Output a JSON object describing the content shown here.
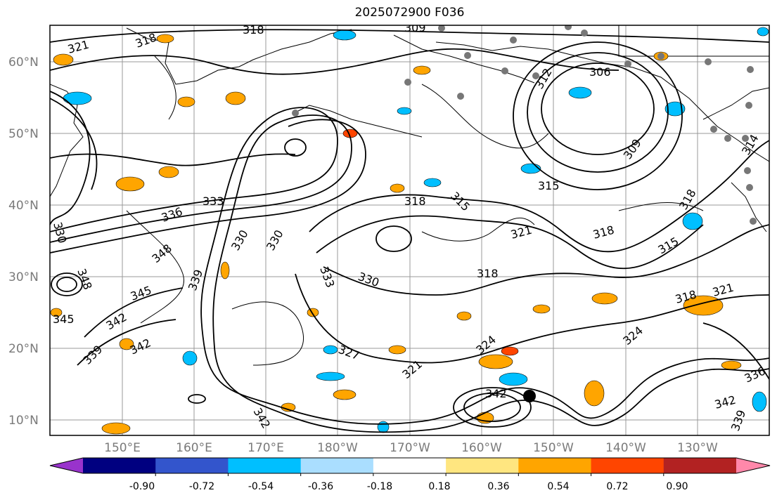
{
  "title": "2025072900 F036",
  "lat_labels": [
    "60°N",
    "50°N",
    "40°N",
    "30°N",
    "20°N",
    "10°N"
  ],
  "lon_labels": [
    "150°E",
    "160°E",
    "170°E",
    "180°W",
    "170°W",
    "160°W",
    "150°W",
    "140°W",
    "130°W"
  ],
  "colorbar": {
    "ticks": [
      "-0.90",
      "-0.72",
      "-0.54",
      "-0.36",
      "-0.18",
      "0.18",
      "0.36",
      "0.54",
      "0.72",
      "0.90"
    ],
    "colors": [
      "#9933cc",
      "#000080",
      "#3355cc",
      "#00bfff",
      "#aadeff",
      "#ffffff",
      "#ffe680",
      "#ffa500",
      "#ff4500",
      "#b22222",
      "#ff88aa"
    ]
  },
  "contour_labels": [
    "318",
    "321",
    "318",
    "309",
    "312",
    "306",
    "309",
    "315",
    "318",
    "318",
    "315",
    "318",
    "321",
    "318",
    "315",
    "333",
    "336",
    "330",
    "330",
    "330",
    "339",
    "333",
    "330",
    "348",
    "345",
    "348",
    "342",
    "339",
    "342",
    "345",
    "327",
    "321",
    "324",
    "324",
    "318",
    "321",
    "336",
    "342",
    "339",
    "342",
    "342",
    "314"
  ]
}
